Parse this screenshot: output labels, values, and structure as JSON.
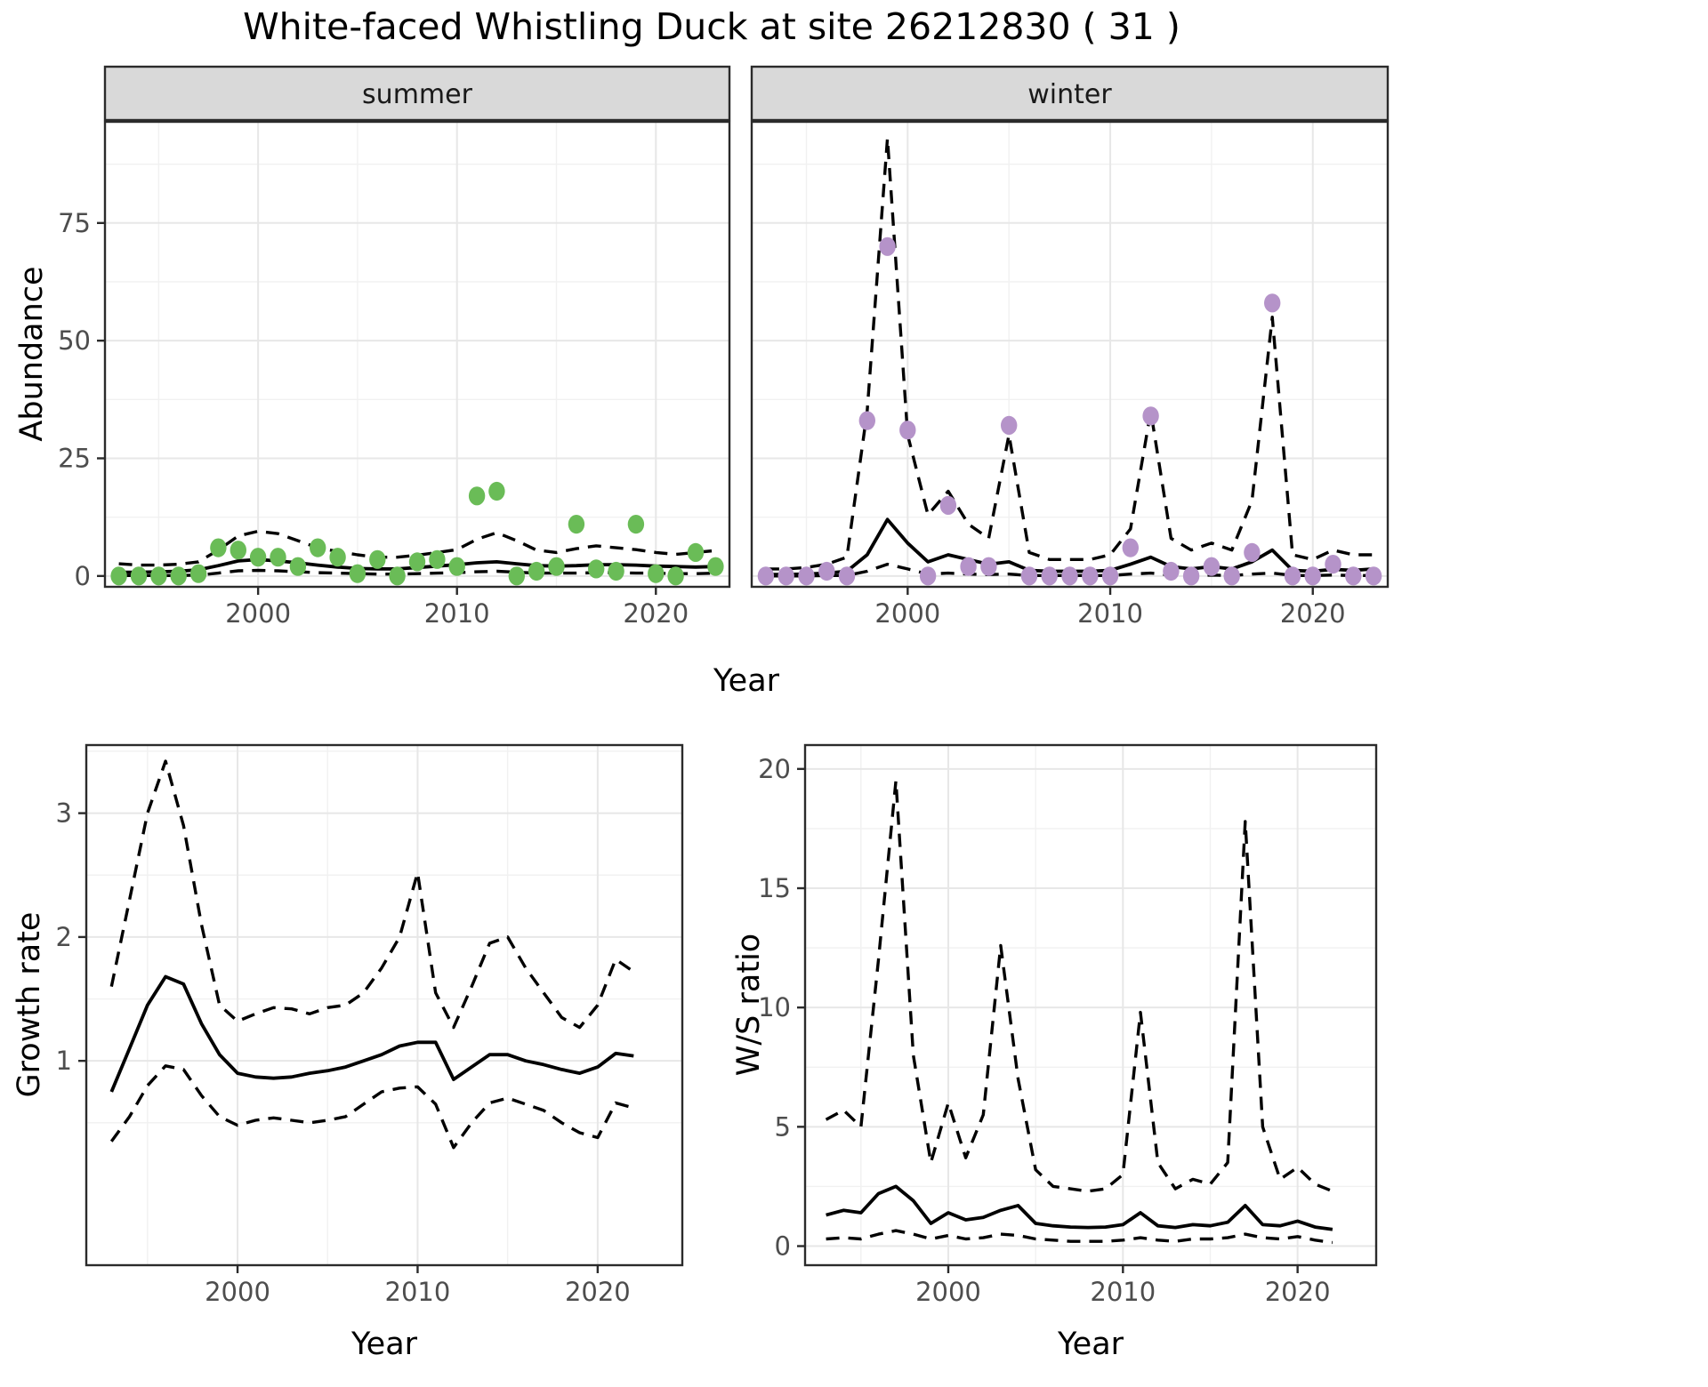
{
  "title": "White-faced Whistling Duck at site 26212830 ( 31 )",
  "colors": {
    "panel_bg": "#ffffff",
    "grid_major": "#e7e7e7",
    "grid_minor": "#f1f1f1",
    "border": "#2b2b2b",
    "line": "#000000",
    "strip_bg": "#d9d9d9",
    "strip_text": "#1a1a1a",
    "tick_text": "#4d4d4d",
    "summer_point": "#6abc57",
    "winter_point": "#b593c9"
  },
  "chart_data": {
    "type": "line",
    "abundance": {
      "ylabel": "Abundance",
      "xlabel": "Year",
      "yticks": [
        0,
        25,
        50,
        75
      ],
      "xticks": [
        2000,
        2010,
        2020
      ],
      "ylim": [
        -2.3,
        96.5
      ],
      "xlim": [
        1992.3,
        2023.7
      ],
      "years": [
        1993,
        1994,
        1995,
        1996,
        1997,
        1998,
        1999,
        2000,
        2001,
        2002,
        2003,
        2004,
        2005,
        2006,
        2007,
        2008,
        2009,
        2010,
        2011,
        2012,
        2013,
        2014,
        2015,
        2016,
        2017,
        2018,
        2019,
        2020,
        2021,
        2022,
        2023
      ],
      "facets": [
        {
          "label": "summer",
          "point_color": "#6abc57",
          "obs": [
            0,
            0,
            0,
            0,
            0.5,
            6,
            5.5,
            4,
            4,
            2,
            6,
            4,
            0.5,
            3.5,
            0,
            3,
            3.5,
            2,
            17,
            18,
            0,
            1,
            2,
            11,
            1.5,
            1,
            11,
            0.5,
            0,
            5,
            2
          ],
          "fit": [
            0.8,
            0.8,
            0.9,
            1.0,
            1.3,
            2.2,
            3.2,
            3.5,
            3.2,
            2.8,
            2.3,
            1.9,
            1.6,
            1.5,
            1.5,
            1.8,
            2.1,
            2.4,
            2.8,
            3.0,
            2.6,
            2.2,
            2.1,
            2.2,
            2.4,
            2.4,
            2.3,
            2.1,
            2.0,
            1.9,
            2.0
          ],
          "hi": [
            2.6,
            2.3,
            2.3,
            2.5,
            3.0,
            5.5,
            8.5,
            9.5,
            9.0,
            7.5,
            6.0,
            5.2,
            4.5,
            4.0,
            4.0,
            4.4,
            5.0,
            5.6,
            7.8,
            9.2,
            7.5,
            5.5,
            5.0,
            5.8,
            6.4,
            6.0,
            5.6,
            5.0,
            4.6,
            5.0,
            5.4
          ],
          "lo": [
            0.1,
            0.1,
            0.1,
            0.1,
            0.2,
            0.6,
            1.1,
            1.2,
            1.1,
            0.9,
            0.7,
            0.6,
            0.5,
            0.4,
            0.4,
            0.5,
            0.6,
            0.7,
            0.9,
            1.0,
            0.8,
            0.6,
            0.6,
            0.6,
            0.7,
            0.7,
            0.6,
            0.6,
            0.5,
            0.5,
            0.6
          ]
        },
        {
          "label": "winter",
          "point_color": "#b593c9",
          "obs": [
            0,
            0,
            0,
            1,
            0,
            33,
            70,
            31,
            0,
            15,
            2,
            2,
            32,
            0,
            0,
            0,
            0,
            0,
            6,
            34,
            1,
            0,
            2,
            0,
            5,
            58,
            0,
            0,
            2.5,
            0,
            0
          ],
          "fit": [
            0.3,
            0.3,
            0.4,
            0.6,
            1.0,
            4.5,
            12,
            7,
            3,
            4.5,
            3.5,
            2.5,
            3,
            1.2,
            1,
            1,
            1,
            1.2,
            2.5,
            4,
            2,
            1.5,
            2,
            1.5,
            3,
            5.5,
            1.2,
            1,
            1.4,
            1.2,
            1.5
          ],
          "hi": [
            1.5,
            1.5,
            1.8,
            2.5,
            4,
            35,
            93,
            30,
            13,
            18,
            11,
            8,
            30,
            5,
            3.5,
            3.5,
            3.5,
            4.5,
            10,
            35,
            8,
            5.5,
            7,
            5.5,
            16,
            55,
            4.5,
            3.5,
            5.5,
            4.5,
            4.5
          ],
          "lo": [
            0,
            0,
            0,
            0.1,
            0.1,
            1,
            2.5,
            1.5,
            0.4,
            0.6,
            0.4,
            0.3,
            0.4,
            0.1,
            0.1,
            0.1,
            0.1,
            0.1,
            0.4,
            0.6,
            0.2,
            0.1,
            0.2,
            0.1,
            0.4,
            0.6,
            0.1,
            0.1,
            0.2,
            0.1,
            0.1
          ]
        }
      ]
    },
    "growth_rate": {
      "ylabel": "Growth rate",
      "xlabel": "Year",
      "yticks": [
        1,
        2,
        3
      ],
      "xticks": [
        2000,
        2010,
        2020
      ],
      "ylim": [
        -0.65,
        3.55
      ],
      "xlim": [
        1991.6,
        2024.7
      ],
      "years": [
        1993,
        1994,
        1995,
        1996,
        1997,
        1998,
        1999,
        2000,
        2001,
        2002,
        2003,
        2004,
        2005,
        2006,
        2007,
        2008,
        2009,
        2010,
        2011,
        2012,
        2013,
        2014,
        2015,
        2016,
        2017,
        2018,
        2019,
        2020,
        2021,
        2022
      ],
      "fit": [
        0.75,
        1.1,
        1.45,
        1.68,
        1.62,
        1.3,
        1.05,
        0.9,
        0.87,
        0.86,
        0.87,
        0.9,
        0.92,
        0.95,
        1.0,
        1.05,
        1.12,
        1.15,
        1.15,
        0.85,
        0.95,
        1.05,
        1.05,
        1.0,
        0.97,
        0.93,
        0.9,
        0.95,
        1.06,
        1.04
      ],
      "hi": [
        1.6,
        2.3,
        3.0,
        3.42,
        2.9,
        2.1,
        1.45,
        1.32,
        1.38,
        1.43,
        1.42,
        1.38,
        1.43,
        1.45,
        1.55,
        1.75,
        2.0,
        2.52,
        1.55,
        1.27,
        1.6,
        1.95,
        2.0,
        1.75,
        1.55,
        1.35,
        1.27,
        1.45,
        1.82,
        1.72
      ],
      "lo": [
        0.35,
        0.55,
        0.8,
        0.96,
        0.93,
        0.72,
        0.55,
        0.48,
        0.52,
        0.54,
        0.52,
        0.5,
        0.52,
        0.55,
        0.65,
        0.75,
        0.78,
        0.79,
        0.65,
        0.3,
        0.5,
        0.66,
        0.7,
        0.65,
        0.6,
        0.5,
        0.42,
        0.38,
        0.66,
        0.62
      ]
    },
    "ws_ratio": {
      "ylabel": "W/S ratio",
      "xlabel": "Year",
      "yticks": [
        0,
        5,
        10,
        15,
        20
      ],
      "xticks": [
        2000,
        2010,
        2020
      ],
      "ylim": [
        -0.8,
        21
      ],
      "xlim": [
        1991.8,
        2024.5
      ],
      "years": [
        1993,
        1994,
        1995,
        1996,
        1997,
        1998,
        1999,
        2000,
        2001,
        2002,
        2003,
        2004,
        2005,
        2006,
        2007,
        2008,
        2009,
        2010,
        2011,
        2012,
        2013,
        2014,
        2015,
        2016,
        2017,
        2018,
        2019,
        2020,
        2021,
        2022
      ],
      "fit": [
        1.3,
        1.5,
        1.4,
        2.2,
        2.5,
        1.9,
        0.95,
        1.4,
        1.1,
        1.2,
        1.5,
        1.7,
        0.95,
        0.85,
        0.8,
        0.78,
        0.8,
        0.9,
        1.4,
        0.85,
        0.78,
        0.9,
        0.85,
        1.0,
        1.7,
        0.9,
        0.85,
        1.05,
        0.8,
        0.7
      ],
      "hi": [
        5.3,
        5.7,
        5.0,
        12,
        19.5,
        8,
        3.5,
        6,
        3.7,
        5.5,
        12.6,
        7,
        3.2,
        2.5,
        2.4,
        2.3,
        2.4,
        3.0,
        9.8,
        3.5,
        2.4,
        2.8,
        2.6,
        3.5,
        17.8,
        5,
        2.8,
        3.3,
        2.6,
        2.3
      ],
      "lo": [
        0.3,
        0.35,
        0.3,
        0.5,
        0.65,
        0.5,
        0.3,
        0.45,
        0.3,
        0.35,
        0.5,
        0.45,
        0.3,
        0.25,
        0.2,
        0.2,
        0.2,
        0.25,
        0.35,
        0.25,
        0.2,
        0.3,
        0.3,
        0.35,
        0.5,
        0.35,
        0.3,
        0.4,
        0.25,
        0.15
      ]
    }
  }
}
